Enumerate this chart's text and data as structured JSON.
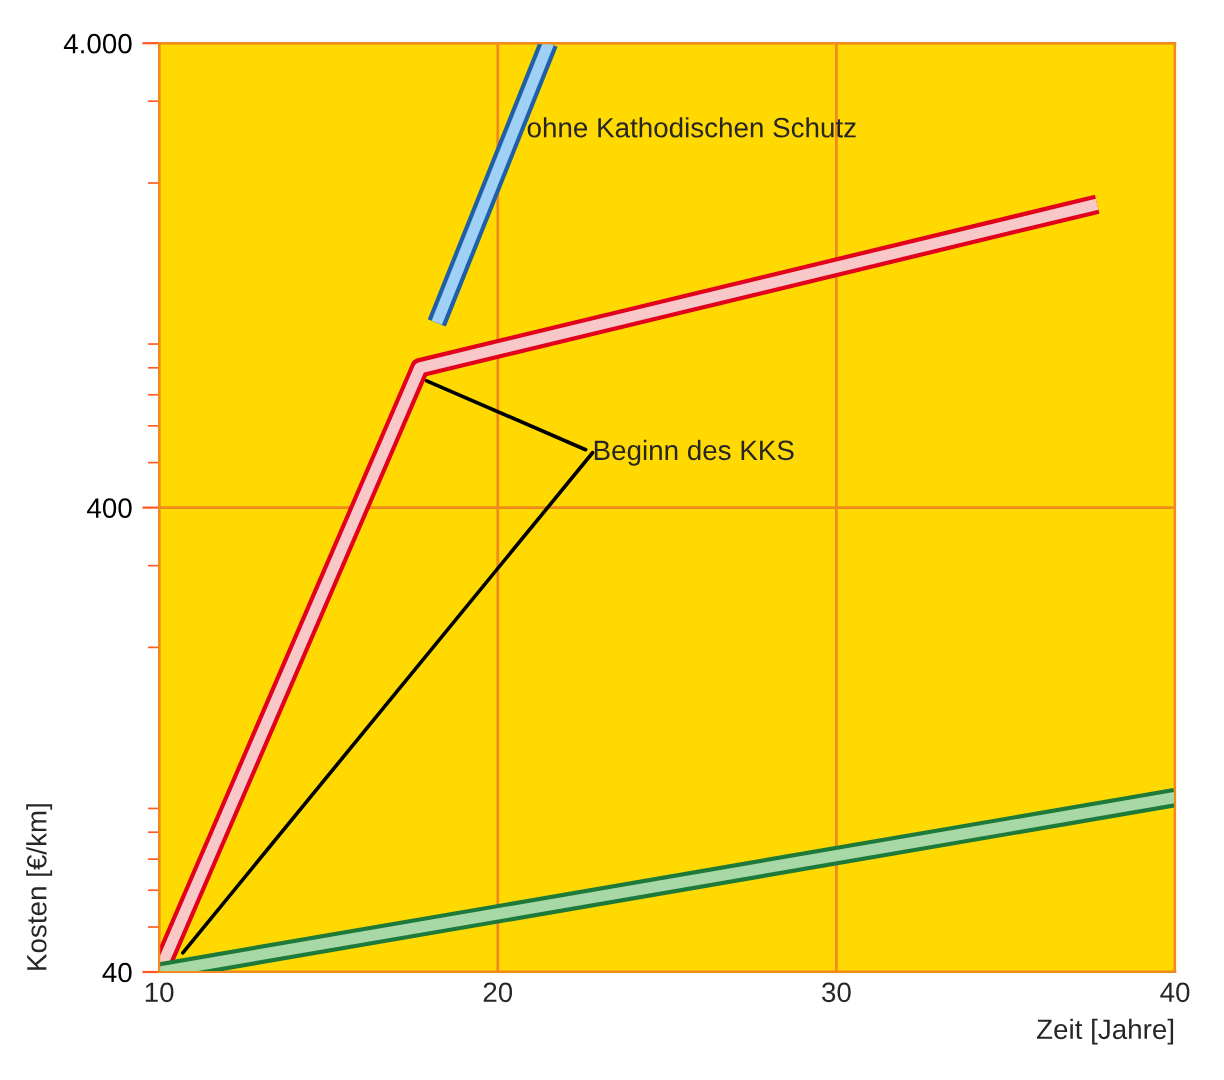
{
  "chart_data": {
    "type": "line",
    "xlabel": "Zeit [Jahre]",
    "ylabel": "Kosten [€/km]",
    "log": "y",
    "grid": true,
    "legend": false,
    "marker": "none",
    "line_style": "solid",
    "xlim": [
      10,
      40
    ],
    "xticks": [
      10,
      20,
      30,
      40
    ],
    "ylim": [
      40,
      4000
    ],
    "yticks": [
      40,
      400,
      {
        "value": 4000,
        "label": "4.000"
      }
    ],
    "series": [
      {
        "x": [
          18.2,
          21.5
        ],
        "values": [
          1000,
          4000
        ],
        "color": "#1f5fa8"
      },
      {
        "x": [
          10,
          17.7,
          37.7
        ],
        "values": [
          40,
          800,
          1800
        ],
        "color": "#e3001b"
      },
      {
        "x": [
          10,
          40
        ],
        "values": [
          40,
          95
        ],
        "color": "#1e7a3a"
      }
    ],
    "annotations": [
      "ohne Kathodischen Schutz",
      {
        "text": "Beginn des KKS",
        "x": 17.9,
        "y": 750
      }
    ]
  }
}
